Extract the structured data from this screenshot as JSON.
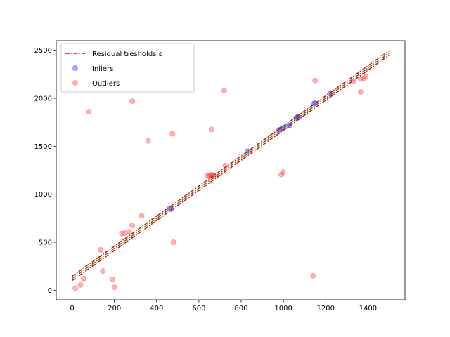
{
  "chart_data": {
    "type": "scatter",
    "title": "",
    "xlabel": "",
    "ylabel": "",
    "xlim": [
      -75,
      1575
    ],
    "ylim": [
      -100,
      2600
    ],
    "xticks": [
      0,
      200,
      400,
      600,
      800,
      1000,
      1200,
      1400
    ],
    "yticks": [
      0,
      500,
      1000,
      1500,
      2000,
      2500
    ],
    "grid": false,
    "legend_position": "top-left",
    "lines": [
      {
        "name": "Residual tresholds ε",
        "style": "dashdot",
        "color": "#e00000",
        "points": [
          [
            0,
            145
          ],
          [
            1500,
            2495
          ]
        ]
      },
      {
        "name": "",
        "style": "dashdot",
        "color": "#e00000",
        "points": [
          [
            0,
            100
          ],
          [
            1500,
            2450
          ]
        ]
      },
      {
        "name": "",
        "style": "dashdot",
        "color": "#1a8a1a",
        "points": [
          [
            0,
            122
          ],
          [
            1500,
            2472
          ]
        ]
      }
    ],
    "series": [
      {
        "name": "Inliers",
        "color": "#3333ff",
        "points": [
          [
            460,
            850
          ],
          [
            468,
            845
          ],
          [
            830,
            1450
          ],
          [
            980,
            1670
          ],
          [
            990,
            1680
          ],
          [
            995,
            1690
          ],
          [
            1020,
            1710
          ],
          [
            1030,
            1720
          ],
          [
            1060,
            1795
          ],
          [
            1065,
            1800
          ],
          [
            1070,
            1805
          ],
          [
            1145,
            1945
          ],
          [
            1150,
            1950
          ],
          [
            1220,
            2050
          ]
        ]
      },
      {
        "name": "Outliers",
        "color": "#ff4444",
        "points": [
          [
            15,
            20
          ],
          [
            40,
            55
          ],
          [
            55,
            120
          ],
          [
            80,
            1860
          ],
          [
            135,
            420
          ],
          [
            145,
            200
          ],
          [
            190,
            115
          ],
          [
            200,
            30
          ],
          [
            235,
            590
          ],
          [
            250,
            595
          ],
          [
            270,
            610
          ],
          [
            285,
            675
          ],
          [
            285,
            1970
          ],
          [
            330,
            775
          ],
          [
            360,
            1555
          ],
          [
            475,
            1630
          ],
          [
            480,
            500
          ],
          [
            640,
            1190
          ],
          [
            648,
            1195
          ],
          [
            655,
            1200
          ],
          [
            660,
            1195
          ],
          [
            665,
            1200
          ],
          [
            670,
            1195
          ],
          [
            660,
            1675
          ],
          [
            720,
            2080
          ],
          [
            725,
            1300
          ],
          [
            990,
            1205
          ],
          [
            998,
            1230
          ],
          [
            1140,
            150
          ],
          [
            1150,
            2185
          ],
          [
            1330,
            2175
          ],
          [
            1365,
            2065
          ],
          [
            1365,
            2200
          ],
          [
            1380,
            2210
          ],
          [
            1390,
            2230
          ]
        ]
      }
    ],
    "legend": [
      {
        "label": "Residual tresholds ε",
        "kind": "line",
        "color": "#e00000"
      },
      {
        "label": "Inliers",
        "kind": "marker",
        "color": "#3333ff"
      },
      {
        "label": "Outliers",
        "kind": "marker",
        "color": "#ff4444"
      }
    ]
  }
}
